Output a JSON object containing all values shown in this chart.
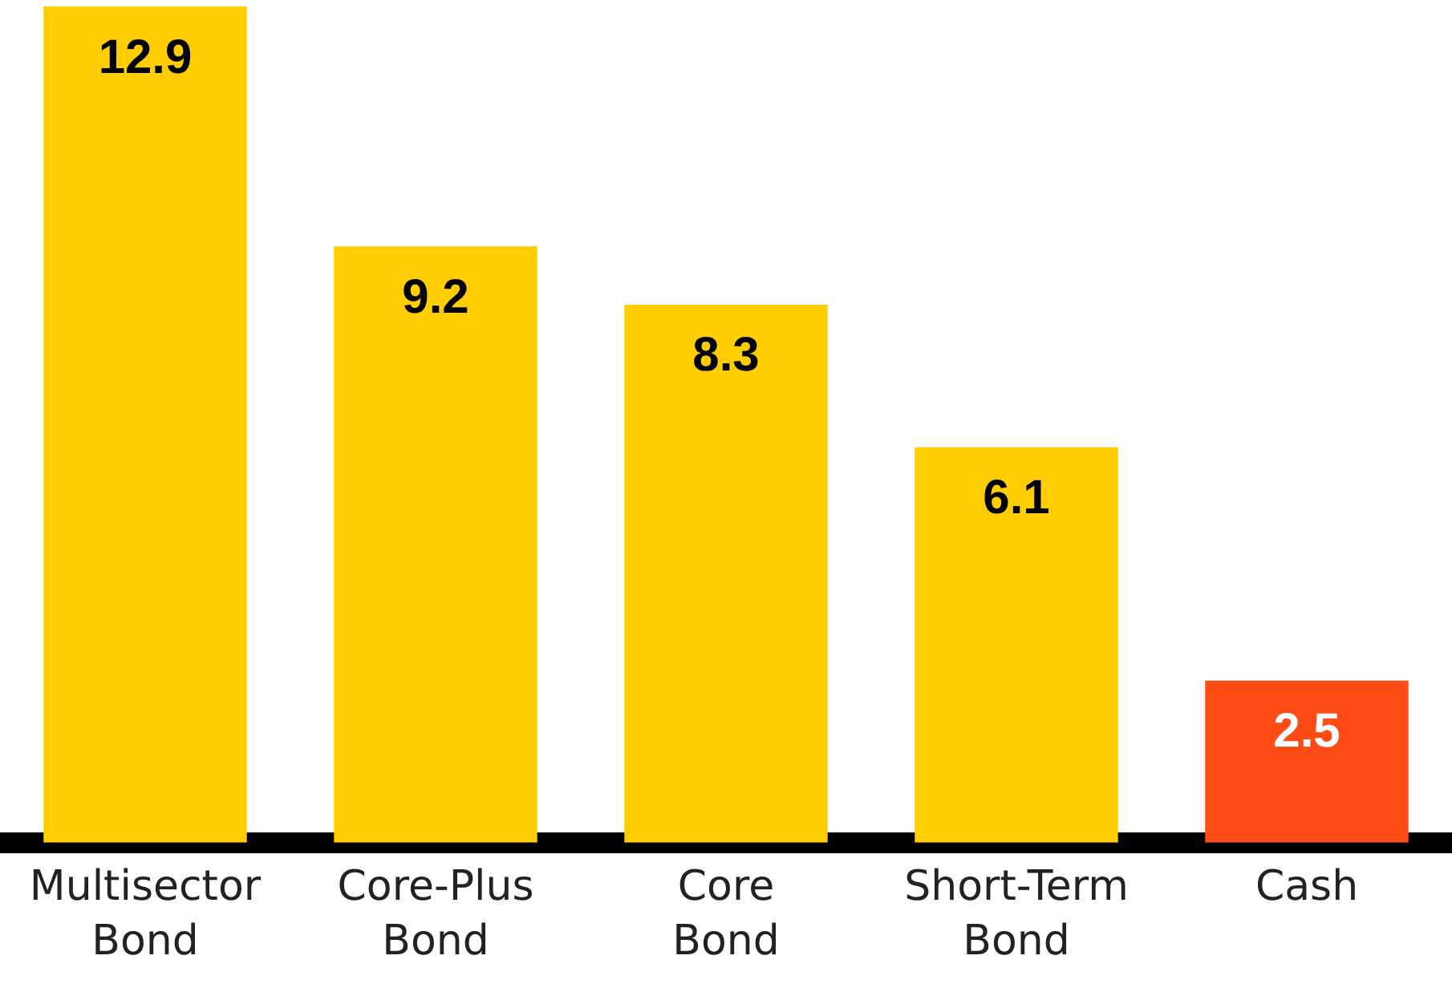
{
  "chart_data": {
    "type": "bar",
    "categories": [
      "Multisector Bond",
      "Core-Plus Bond",
      "Core Bond",
      "Short-Term Bond",
      "Cash"
    ],
    "values": [
      12.9,
      9.2,
      8.3,
      6.1,
      2.5
    ],
    "colors": [
      "#ffcd00",
      "#ffcd00",
      "#ffcd00",
      "#ffcd00",
      "#ff4c17"
    ],
    "ylim": [
      0,
      13
    ],
    "data_labels": true,
    "tick_labels": "x",
    "grid": false,
    "legend": false
  }
}
